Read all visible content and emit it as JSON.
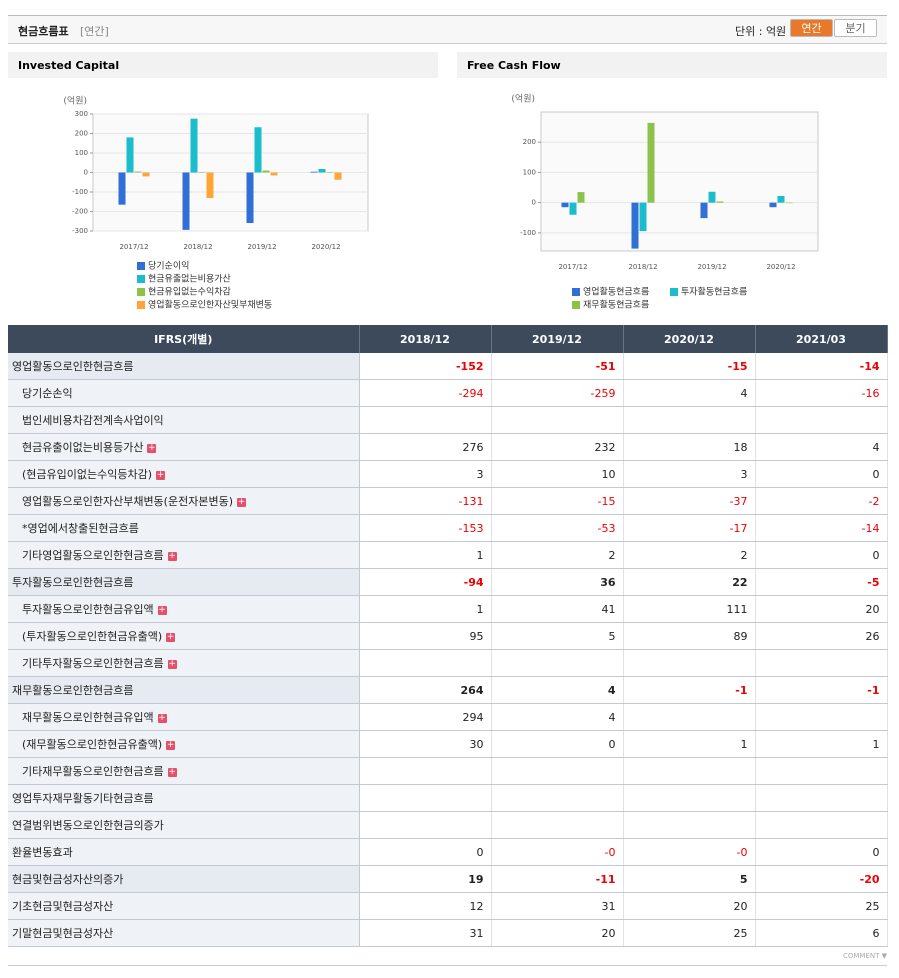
{
  "header": {
    "title": "현금흐름표",
    "period": "[연간]",
    "unit": "단위 : 억원",
    "tabs": [
      "연간",
      "분기"
    ]
  },
  "chart_data": [
    {
      "type": "bar",
      "title": "Invested Capital",
      "y_label": "(억원)",
      "categories": [
        "2017/12",
        "2018/12",
        "2019/12",
        "2020/12"
      ],
      "series": [
        {
          "name": "당기순이익",
          "color": "#2f6fd6",
          "values": [
            -165,
            -294,
            -259,
            4
          ]
        },
        {
          "name": "현금유출없는비용가산",
          "color": "#1bbccc",
          "values": [
            180,
            276,
            232,
            18
          ]
        },
        {
          "name": "현금유입없는수익차감",
          "color": "#8bc34a",
          "values": [
            5,
            3,
            10,
            3
          ]
        },
        {
          "name": "영업활동으로인한자산및부채변동",
          "color": "#ffa535",
          "values": [
            -20,
            -131,
            -15,
            -37
          ]
        }
      ],
      "ylim": [
        -300,
        300
      ],
      "yticks": [
        -300,
        -200,
        -100,
        0,
        100,
        200,
        300
      ],
      "grid": true,
      "legend": "bottom"
    },
    {
      "type": "bar",
      "title": "Free Cash Flow",
      "y_label": "(억원)",
      "categories": [
        "2017/12",
        "2018/12",
        "2019/12",
        "2020/12"
      ],
      "series": [
        {
          "name": "영업활동현금흐름",
          "color": "#2f6fd6",
          "values": [
            -15,
            -152,
            -51,
            -15
          ]
        },
        {
          "name": "투자활동현금흐름",
          "color": "#1bbccc",
          "values": [
            -40,
            -94,
            36,
            22
          ]
        },
        {
          "name": "재무활동현금흐름",
          "color": "#8bc34a",
          "values": [
            35,
            264,
            4,
            -1
          ]
        }
      ],
      "ylim": [
        -160,
        300
      ],
      "yticks": [
        -100,
        0,
        100,
        200
      ],
      "grid": true,
      "legend": "bottom"
    }
  ],
  "table": {
    "header": [
      "IFRS(개별)",
      "2018/12",
      "2019/12",
      "2020/12",
      "2021/03"
    ],
    "rows": [
      {
        "label": "영업활동으로인한현금흐름",
        "level": 0,
        "bold": true,
        "cells": [
          "-152",
          "-51",
          "-15",
          "-14"
        ]
      },
      {
        "label": "당기순손익",
        "level": 1,
        "cells": [
          "-294",
          "-259",
          "4",
          "-16"
        ]
      },
      {
        "label": "법인세비용차감전계속사업이익",
        "level": 1,
        "cells": [
          null,
          null,
          null,
          null
        ]
      },
      {
        "label": "현금유출이없는비용등가산",
        "level": 1,
        "expand": true,
        "cells": [
          "276",
          "232",
          "18",
          "4"
        ]
      },
      {
        "label": "(현금유입이없는수익등차감)",
        "level": 1,
        "expand": true,
        "cells": [
          "3",
          "10",
          "3",
          "0"
        ]
      },
      {
        "label": "영업활동으로인한자산부채변동(운전자본변동)",
        "level": 1,
        "expand": true,
        "cells": [
          "-131",
          "-15",
          "-37",
          "-2"
        ]
      },
      {
        "label": "*영업에서창출된현금흐름",
        "level": 1,
        "cells": [
          "-153",
          "-53",
          "-17",
          "-14"
        ]
      },
      {
        "label": "기타영업활동으로인한현금흐름",
        "level": 1,
        "expand": true,
        "cells": [
          "1",
          "2",
          "2",
          "0"
        ]
      },
      {
        "label": "투자활동으로인한현금흐름",
        "level": 0,
        "bold": true,
        "cells": [
          "-94",
          "36",
          "22",
          "-5"
        ]
      },
      {
        "label": "투자활동으로인한현금유입액",
        "level": 1,
        "expand": true,
        "cells": [
          "1",
          "41",
          "111",
          "20"
        ]
      },
      {
        "label": "(투자활동으로인한현금유출액)",
        "level": 1,
        "expand": true,
        "cells": [
          "95",
          "5",
          "89",
          "26"
        ]
      },
      {
        "label": "기타투자활동으로인한현금흐름",
        "level": 1,
        "expand": true,
        "cells": [
          null,
          null,
          null,
          null
        ]
      },
      {
        "label": "재무활동으로인한현금흐름",
        "level": 0,
        "bold": true,
        "cells": [
          "264",
          "4",
          "-1",
          "-1"
        ]
      },
      {
        "label": "재무활동으로인한현금유입액",
        "level": 1,
        "expand": true,
        "cells": [
          "294",
          "4",
          null,
          null
        ]
      },
      {
        "label": "(재무활동으로인한현금유출액)",
        "level": 1,
        "expand": true,
        "cells": [
          "30",
          "0",
          "1",
          "1"
        ]
      },
      {
        "label": "기타재무활동으로인한현금흐름",
        "level": 1,
        "expand": true,
        "cells": [
          null,
          null,
          null,
          null
        ]
      },
      {
        "label": "영업투자재무활동기타현금흐름",
        "level": 0,
        "cells": [
          null,
          null,
          null,
          null
        ]
      },
      {
        "label": "연결범위변동으로인한현금의증가",
        "level": 0,
        "cells": [
          null,
          null,
          null,
          null
        ]
      },
      {
        "label": "환율변동효과",
        "level": 0,
        "cells": [
          "0",
          "-0",
          "-0",
          "0"
        ]
      },
      {
        "label": "현금및현금성자산의증가",
        "level": 0,
        "bold": true,
        "cells": [
          "19",
          "-11",
          "5",
          "-20"
        ]
      },
      {
        "label": "기초현금및현금성자산",
        "level": 0,
        "cells": [
          "12",
          "31",
          "20",
          "25"
        ]
      },
      {
        "label": "기말현금및현금성자산",
        "level": 0,
        "cells": [
          "31",
          "20",
          "25",
          "6"
        ]
      }
    ]
  },
  "footer": "COMMENT"
}
